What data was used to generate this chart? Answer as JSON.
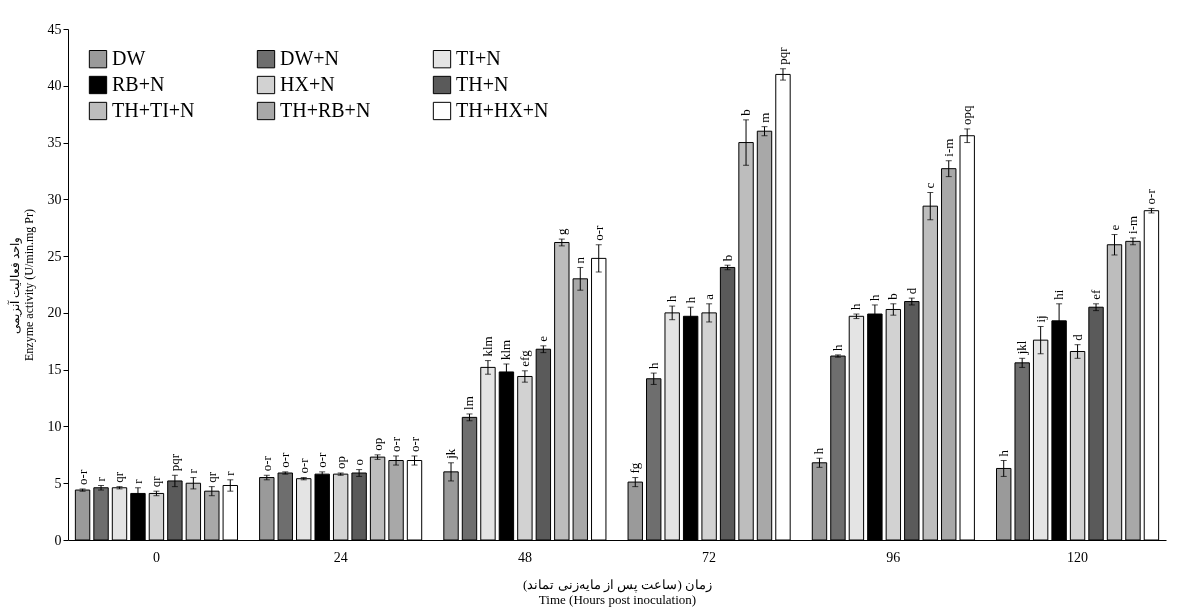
{
  "chart_data": {
    "type": "bar",
    "xlabel": "زمان (ساعت پس از مایه‌زنی تماند)\nTime  (Hours post inoculation)",
    "ylabel": "واحد فعالیت آنزیمی\nEnzyme  activity  (U/min.mg Pr)",
    "categories": [
      "0",
      "24",
      "48",
      "72",
      "96",
      "120"
    ],
    "ylim": [
      0,
      45
    ],
    "yticks": [
      0,
      5,
      10,
      15,
      20,
      25,
      30,
      35,
      40,
      45
    ],
    "grid": false,
    "legend": "top left",
    "series": [
      {
        "name": "DW",
        "color": "#9a9a9a",
        "values": [
          4.4,
          5.5,
          6.0,
          5.1,
          6.8,
          6.3
        ],
        "errors": [
          0.1,
          0.2,
          0.8,
          0.4,
          0.4,
          0.7
        ],
        "value_labels": [
          "o-r",
          "o-r",
          "jk",
          "fg",
          "h",
          "h"
        ]
      },
      {
        "name": "DW+N",
        "color": "#6e6e6e",
        "values": [
          4.6,
          5.9,
          10.8,
          14.2,
          16.2,
          15.6
        ],
        "errors": [
          0.2,
          0.1,
          0.3,
          0.5,
          0.1,
          0.4
        ],
        "value_labels": [
          "r",
          "o-r",
          "lm",
          "h",
          "h",
          "jkl"
        ]
      },
      {
        "name": "TI+N",
        "color": "#e4e4e4",
        "values": [
          4.6,
          5.4,
          15.2,
          20.0,
          19.7,
          17.6
        ],
        "errors": [
          0.1,
          0.1,
          0.6,
          0.6,
          0.2,
          1.2
        ],
        "value_labels": [
          "qr",
          "o-r",
          "klm",
          "h",
          "h",
          "ij"
        ]
      },
      {
        "name": "RB+N",
        "color": "#000000",
        "values": [
          4.1,
          5.8,
          14.8,
          19.7,
          19.9,
          19.3
        ],
        "errors": [
          0.5,
          0.2,
          0.7,
          0.8,
          0.8,
          1.5
        ],
        "value_labels": [
          "r",
          "o-r",
          "klm",
          "h",
          "h",
          "hi"
        ]
      },
      {
        "name": "HX+N",
        "color": "#d2d2d2",
        "values": [
          4.1,
          5.8,
          14.4,
          20.0,
          20.3,
          16.6
        ],
        "errors": [
          0.2,
          0.1,
          0.5,
          0.8,
          0.5,
          0.6
        ],
        "value_labels": [
          "qr",
          "op",
          "efg",
          "a",
          "b",
          "d"
        ]
      },
      {
        "name": "TH+N",
        "color": "#5a5a5a",
        "values": [
          5.2,
          5.9,
          16.8,
          24.0,
          21.0,
          20.5
        ],
        "errors": [
          0.5,
          0.3,
          0.3,
          0.2,
          0.3,
          0.3
        ],
        "value_labels": [
          "pqr",
          "o",
          "e",
          "b",
          "d",
          "ef"
        ]
      },
      {
        "name": "TH+TI+N",
        "color": "#bdbdbd",
        "values": [
          5.0,
          7.3,
          26.2,
          35.0,
          29.4,
          26.0
        ],
        "errors": [
          0.5,
          0.2,
          0.3,
          2.0,
          1.2,
          0.9
        ],
        "value_labels": [
          "r",
          "op",
          "g",
          "b",
          "c",
          "e"
        ]
      },
      {
        "name": "TH+RB+N",
        "color": "#a8a8a8",
        "values": [
          4.3,
          7.0,
          23.0,
          36.0,
          32.7,
          26.3
        ],
        "errors": [
          0.4,
          0.4,
          1.0,
          0.4,
          0.7,
          0.3
        ],
        "value_labels": [
          "qr",
          "o-r",
          "n",
          "m",
          "i-m",
          "i-m"
        ]
      },
      {
        "name": "TH+HX+N",
        "color": "#ffffff",
        "values": [
          4.8,
          7.0,
          24.8,
          41.0,
          35.6,
          29.0
        ],
        "errors": [
          0.5,
          0.4,
          1.2,
          0.5,
          0.6,
          0.2
        ],
        "value_labels": [
          "r",
          "o-r",
          "o-r",
          "pqr",
          "opq",
          "o-r"
        ]
      }
    ]
  }
}
